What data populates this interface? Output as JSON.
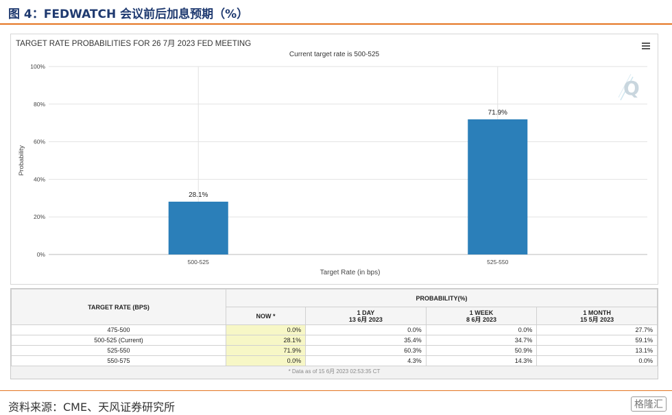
{
  "figure": {
    "title": "图 4：FEDWATCH 会议前后加息预期（%）",
    "source": "资料来源：CME、天风证券研究所",
    "watermark": "格隆汇"
  },
  "chart_data": {
    "type": "bar",
    "title": "TARGET RATE PROBABILITIES FOR 26 7月 2023 FED MEETING",
    "subtitle": "Current target rate is 500-525",
    "xlabel": "Target Rate (in bps)",
    "ylabel": "Probability",
    "categories": [
      "500-525",
      "525-550"
    ],
    "values": [
      28.1,
      71.9
    ],
    "data_labels": [
      "28.1%",
      "71.9%"
    ],
    "ylim": [
      0,
      100
    ],
    "yticks": [
      "0%",
      "20%",
      "40%",
      "60%",
      "80%",
      "100%"
    ],
    "ytick_values": [
      0,
      20,
      40,
      60,
      80,
      100
    ],
    "grid": true,
    "colors": {
      "bar": "#2b7fb9",
      "grid": "#e2e2e2"
    }
  },
  "table": {
    "header_rate": "TARGET RATE (BPS)",
    "header_prob": "PROBABILITY(%)",
    "columns": [
      {
        "line1": "NOW *",
        "line2": ""
      },
      {
        "line1": "1 DAY",
        "line2": "13 6月 2023"
      },
      {
        "line1": "1 WEEK",
        "line2": "8 6月 2023"
      },
      {
        "line1": "1 MONTH",
        "line2": "15 5月 2023"
      }
    ],
    "rows": [
      {
        "rate": "475-500",
        "values": [
          "0.0%",
          "0.0%",
          "0.0%",
          "27.7%"
        ]
      },
      {
        "rate": "500-525 (Current)",
        "values": [
          "28.1%",
          "35.4%",
          "34.7%",
          "59.1%"
        ]
      },
      {
        "rate": "525-550",
        "values": [
          "71.9%",
          "60.3%",
          "50.9%",
          "13.1%"
        ]
      },
      {
        "rate": "550-575",
        "values": [
          "0.0%",
          "4.3%",
          "14.3%",
          "0.0%"
        ]
      }
    ],
    "footnote": "* Data as of 15 6月 2023 02:53:35 CT"
  }
}
